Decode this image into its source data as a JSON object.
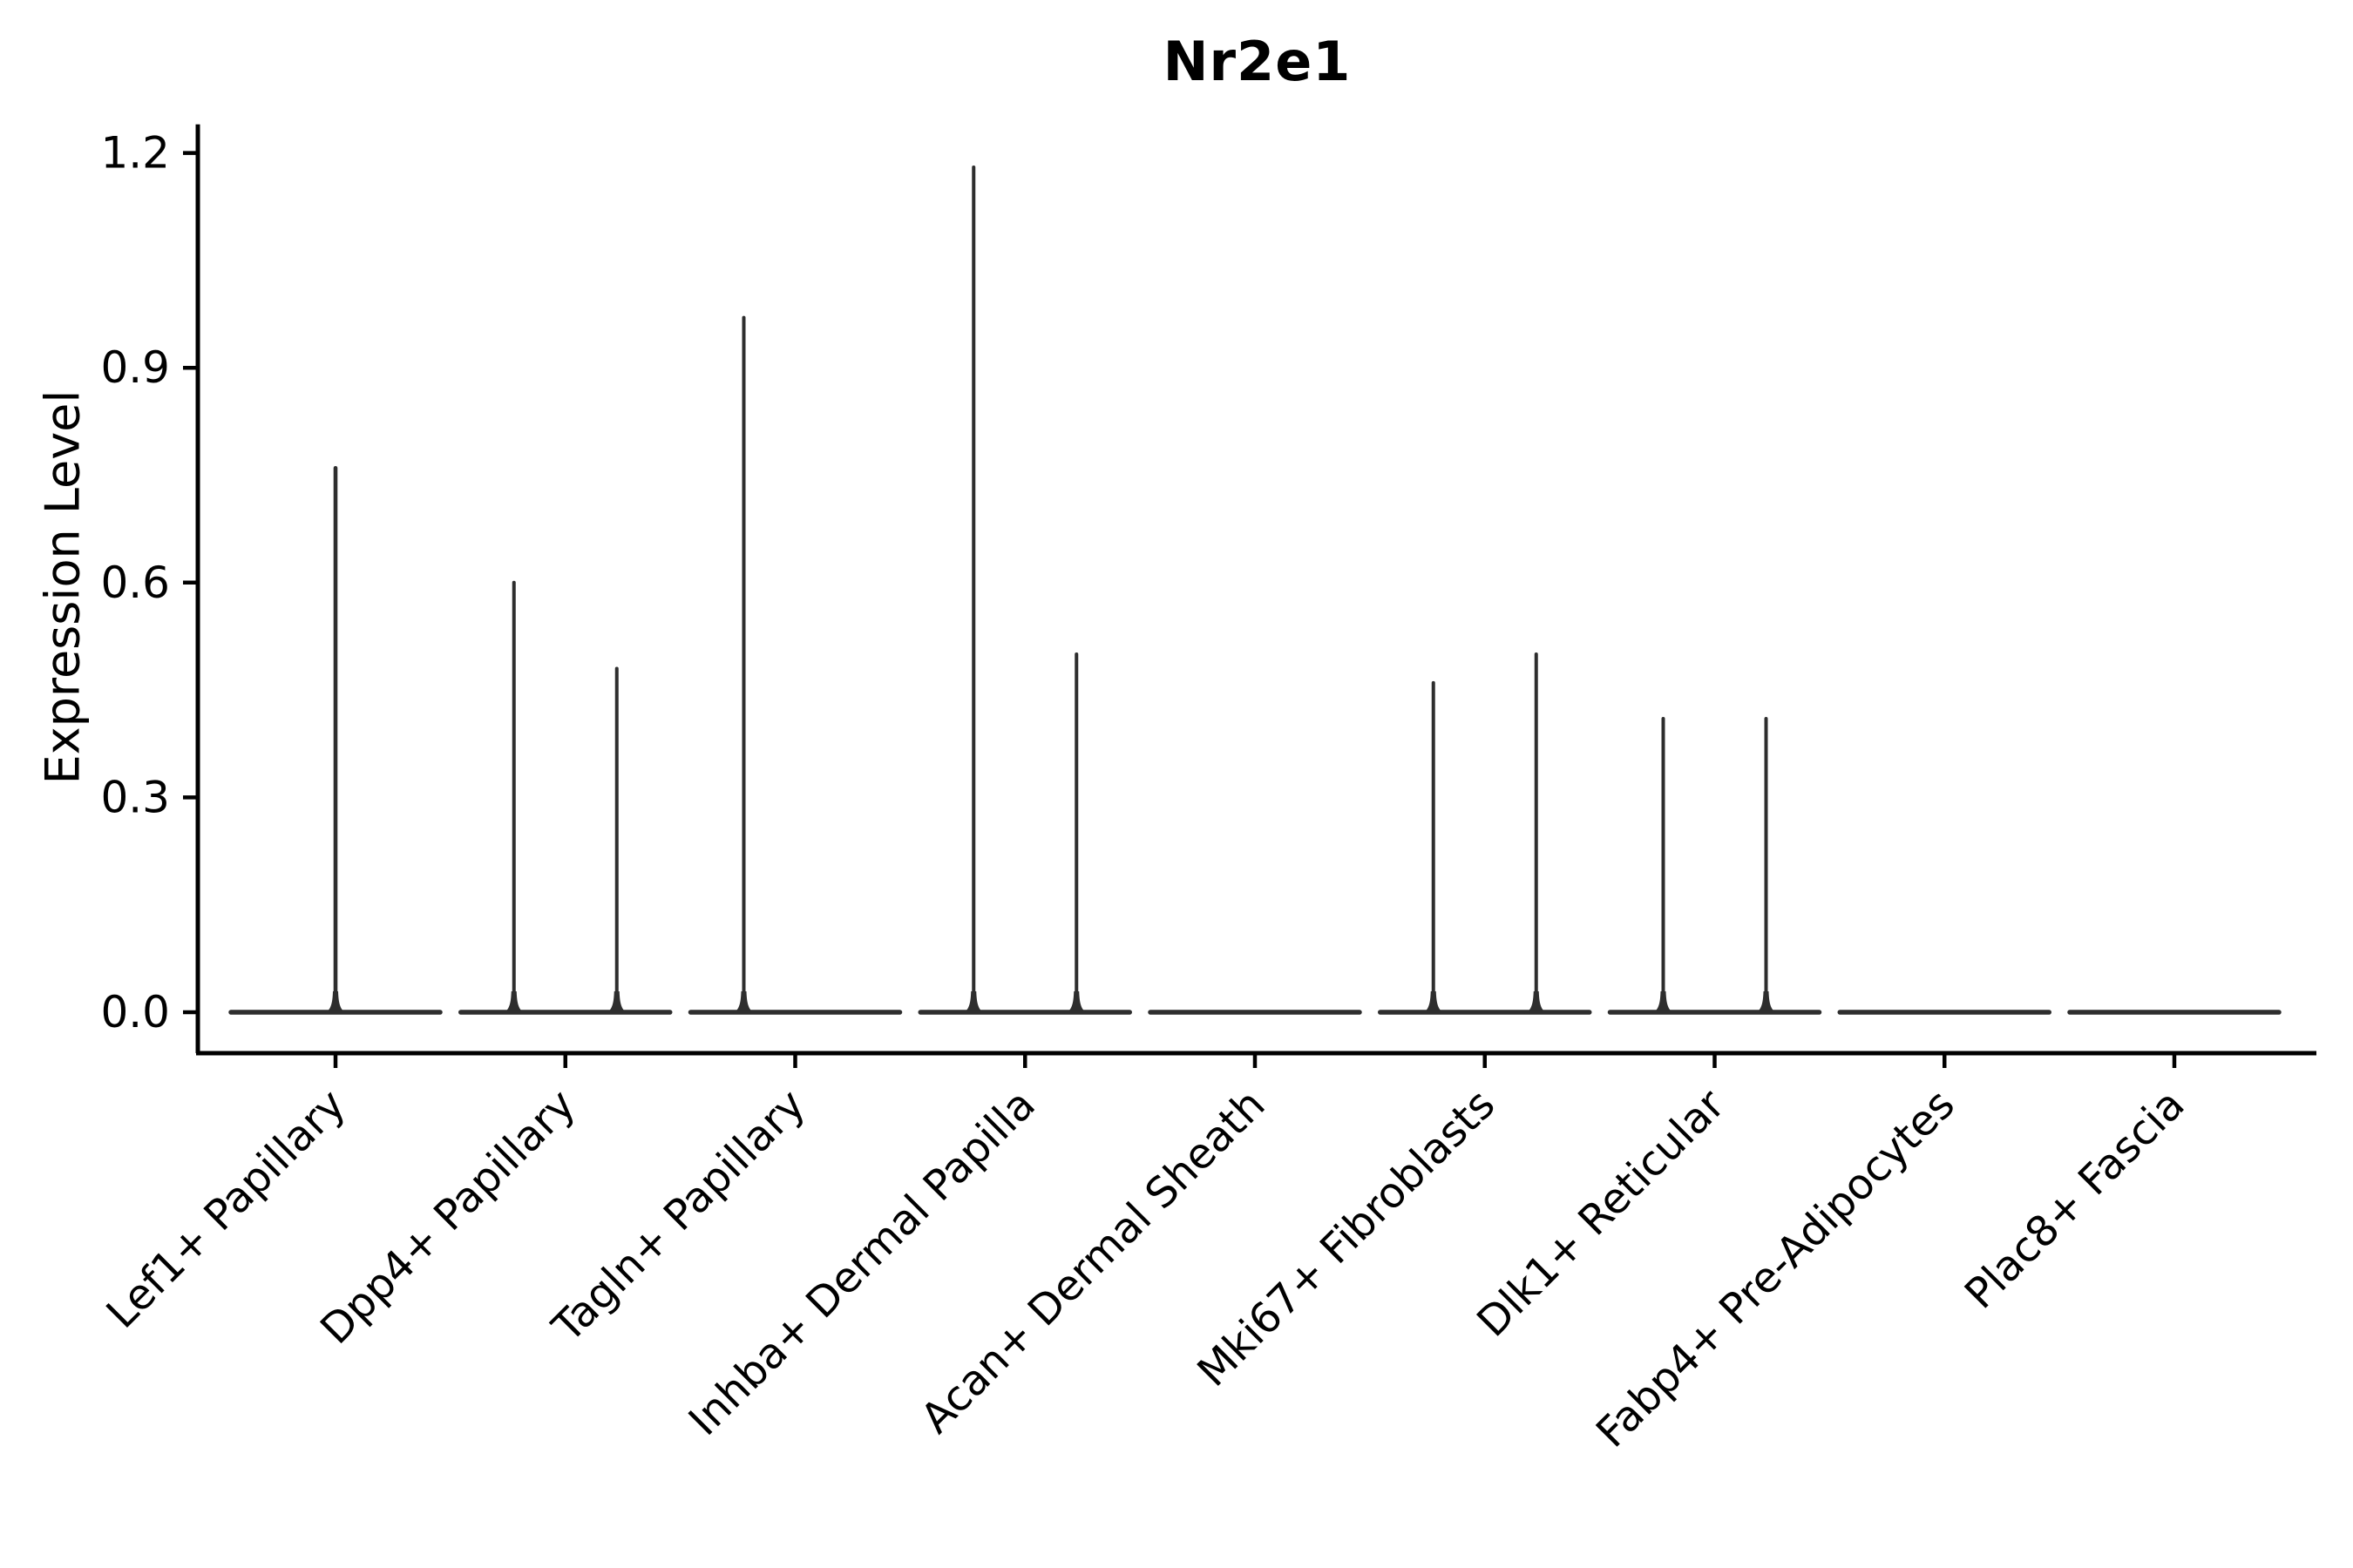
{
  "figure": {
    "title": "Nr2e1"
  },
  "chart_data": {
    "type": "violin",
    "title": "Nr2e1",
    "ylabel": "Expression Level",
    "xlabel": "",
    "ytick_labels": [
      "0.0",
      "0.3",
      "0.6",
      "0.9",
      "1.2"
    ],
    "yticks": [
      0.0,
      0.3,
      0.6,
      0.9,
      1.2
    ],
    "ylim": [
      -0.06,
      1.24
    ],
    "grid": false,
    "legend": "none",
    "categories": [
      "Lef1+ Papillary",
      "Dpp4+ Papillary",
      "Tagln+ Papillary",
      "Inhba+ Dermal Papilla",
      "Acan+ Dermal Sheath",
      "Mki67+ Fibroblasts",
      "Dlk1+ Reticular",
      "Fabp4+ Pre-Adipocytes",
      "Plac8+ Fascia"
    ],
    "violins": [
      {
        "category": "Lef1+ Papillary",
        "spikes": [
          {
            "position": "center",
            "max": 0.76
          }
        ]
      },
      {
        "category": "Dpp4+ Papillary",
        "spikes": [
          {
            "position": "left",
            "max": 0.6
          },
          {
            "position": "right",
            "max": 0.48
          }
        ]
      },
      {
        "category": "Tagln+ Papillary",
        "spikes": [
          {
            "position": "left",
            "max": 0.97
          }
        ]
      },
      {
        "category": "Inhba+ Dermal Papilla",
        "spikes": [
          {
            "position": "left",
            "max": 1.18
          },
          {
            "position": "right",
            "max": 0.5
          }
        ]
      },
      {
        "category": "Acan+ Dermal Sheath",
        "spikes": []
      },
      {
        "category": "Mki67+ Fibroblasts",
        "spikes": [
          {
            "position": "left",
            "max": 0.46
          },
          {
            "position": "right",
            "max": 0.5
          }
        ]
      },
      {
        "category": "Dlk1+ Reticular",
        "spikes": [
          {
            "position": "left",
            "max": 0.41
          },
          {
            "position": "right",
            "max": 0.41
          }
        ]
      },
      {
        "category": "Fabp4+ Pre-Adipocytes",
        "spikes": []
      },
      {
        "category": "Plac8+ Fascia",
        "spikes": []
      }
    ],
    "colors": {
      "violin_line": "#2e2e2e",
      "axis": "#000000",
      "text": "#000000",
      "background": "#ffffff"
    }
  }
}
